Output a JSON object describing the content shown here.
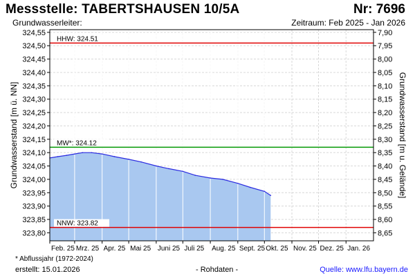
{
  "header": {
    "title": "Messstelle: TABERTSHAUSEN 10/5A",
    "number": "Nr: 7696",
    "aquifer_label": "Grundwasserleiter:",
    "period": "Zeitraum: Feb 2025 - Jan 2026"
  },
  "footer": {
    "footnote": "* Abflussjahr (1972-2024)",
    "created": "erstellt:  15.01.2026",
    "raw_data": "- Rohdaten -",
    "source": "Quelle: www.lfu.bayern.de"
  },
  "colors": {
    "fill": "#a9c8f0",
    "line": "#2a2ae0",
    "hhw": "#e00000",
    "mw": "#009900",
    "nnw": "#e00000",
    "grid": "#d8d8d8",
    "month_dividers": "#ffffff"
  },
  "chart_data": {
    "type": "area",
    "ylabel": "Grundwasserstand [m ü. NN]",
    "ylabel_right": "Grundwasserstand [m u. Gelände]",
    "ylim": [
      323.77,
      324.56
    ],
    "ylim_right": [
      8.66,
      7.87
    ],
    "y_ticks": [
      "324,55",
      "324,50",
      "324,45",
      "324,40",
      "324,35",
      "324,30",
      "324,25",
      "324,20",
      "324,15",
      "324,10",
      "324,05",
      "324,00",
      "323,95",
      "323,90",
      "323,85",
      "323,80"
    ],
    "y_ticks_right": [
      "7,90",
      "7,95",
      "8,00",
      "8,05",
      "8,10",
      "8,15",
      "8,20",
      "8,25",
      "8,30",
      "8,35",
      "8,40",
      "8,45",
      "8,50",
      "8,55",
      "8,60",
      "8,65"
    ],
    "months": [
      "Feb. 25",
      "Mrz. 25",
      "Apr. 25",
      "Mai 25",
      "Juni 25",
      "Juli 25",
      "Aug. 25",
      "Sept. 25",
      "Okt. 25",
      "Nov. 25",
      "Dez. 25",
      "Jan. 26"
    ],
    "grid": true,
    "x": [
      "2025-02-01",
      "2025-02-10",
      "2025-02-20",
      "2025-03-01",
      "2025-03-10",
      "2025-03-20",
      "2025-04-01",
      "2025-04-15",
      "2025-05-01",
      "2025-05-15",
      "2025-06-01",
      "2025-06-15",
      "2025-07-01",
      "2025-07-15",
      "2025-08-01",
      "2025-08-15",
      "2025-09-01",
      "2025-09-15",
      "2025-10-01",
      "2025-10-08"
    ],
    "series": [
      {
        "values": [
          324.08,
          324.085,
          324.09,
          324.095,
          324.1,
          324.1,
          324.095,
          324.085,
          324.075,
          324.065,
          324.05,
          324.04,
          324.03,
          324.015,
          324.005,
          324.0,
          323.985,
          323.97,
          323.955,
          323.94
        ]
      }
    ],
    "reference_lines": [
      {
        "label": "HHW: 324.51",
        "value": 324.51
      },
      {
        "label": "MW*: 324.12",
        "value": 324.12
      },
      {
        "label": "NNW: 323.82",
        "value": 323.82
      }
    ]
  }
}
